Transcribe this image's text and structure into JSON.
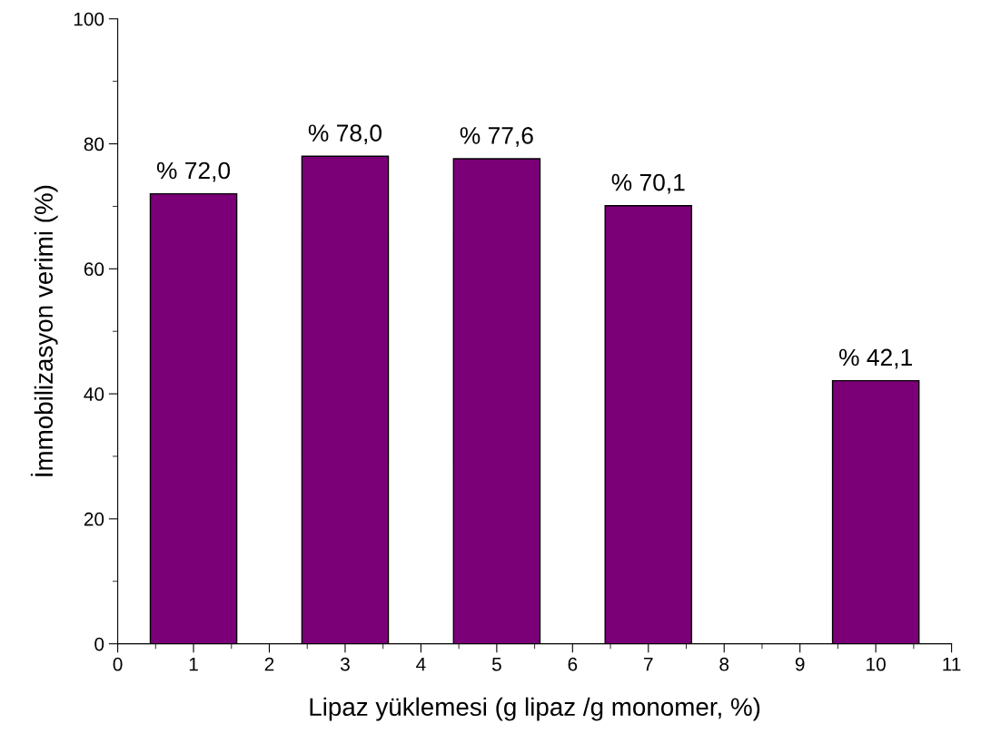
{
  "chart_data": {
    "type": "bar",
    "xlabel": "Lipaz yüklemesi (g lipaz /g monomer, %)",
    "ylabel": "İmmobilizasyon verimi (%)",
    "x": [
      1,
      3,
      5,
      7,
      10
    ],
    "values": [
      72.0,
      78.0,
      77.6,
      70.1,
      42.1
    ],
    "value_labels": [
      "% 72,0",
      "% 78,0",
      "% 77,6",
      "% 70,1",
      "% 42,1"
    ],
    "color": "#7b0078",
    "xlim": [
      0,
      11
    ],
    "xticks": [
      0,
      1,
      2,
      3,
      4,
      5,
      6,
      7,
      8,
      9,
      10,
      11
    ],
    "ylim": [
      0,
      100
    ],
    "yticks": [
      0,
      20,
      40,
      60,
      80,
      100
    ],
    "grid": false,
    "legend": false
  }
}
